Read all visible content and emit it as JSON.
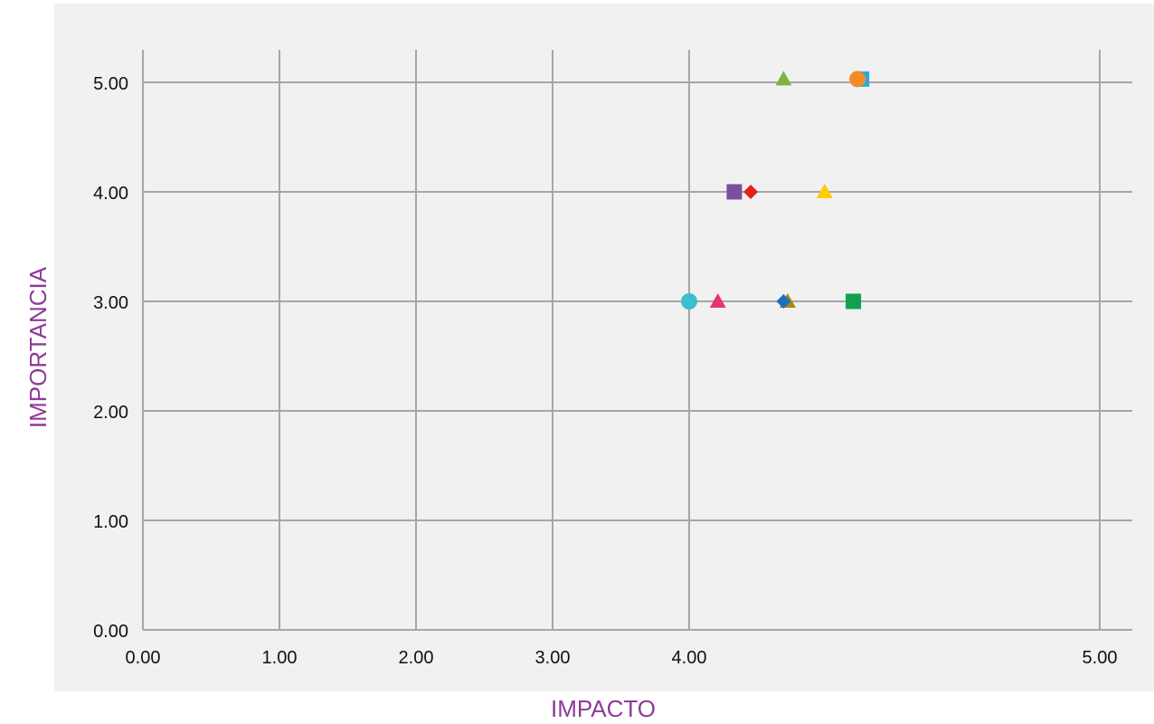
{
  "chart_data": {
    "type": "scatter",
    "xlabel": "IMPACTO",
    "ylabel": "IMPORTANCIA",
    "x_ticks": [
      "0.00",
      "1.00",
      "2.00",
      "3.00",
      "4.00",
      "5.00"
    ],
    "y_ticks": [
      "0.00",
      "1.00",
      "2.00",
      "3.00",
      "4.00",
      "5.00"
    ],
    "x_tick_values": [
      0,
      1,
      2,
      3,
      4,
      5
    ],
    "y_tick_values": [
      0,
      1,
      2,
      3,
      4,
      5
    ],
    "xlim": [
      0,
      5
    ],
    "ylim": [
      0,
      5
    ],
    "grid": true,
    "legend": "none",
    "points": [
      {
        "x": 4.23,
        "y": 5.03,
        "shape": "triangle",
        "color": "#7cb342"
      },
      {
        "x": 4.42,
        "y": 5.03,
        "shape": "square",
        "color": "#29a8e0"
      },
      {
        "x": 4.41,
        "y": 5.03,
        "shape": "circle",
        "color": "#f28c28"
      },
      {
        "x": 4.11,
        "y": 4.0,
        "shape": "square",
        "color": "#7b4fa0"
      },
      {
        "x": 4.15,
        "y": 4.0,
        "shape": "diamond",
        "color": "#e2231a"
      },
      {
        "x": 4.33,
        "y": 4.0,
        "shape": "triangle",
        "color": "#ffcc00"
      },
      {
        "x": 4.0,
        "y": 3.0,
        "shape": "circle",
        "color": "#3cbfcf"
      },
      {
        "x": 4.07,
        "y": 3.0,
        "shape": "triangle",
        "color": "#e6337a"
      },
      {
        "x": 4.24,
        "y": 3.0,
        "shape": "triangle",
        "color": "#a88a12"
      },
      {
        "x": 4.23,
        "y": 3.0,
        "shape": "diamond",
        "color": "#1f6fbf"
      },
      {
        "x": 4.4,
        "y": 3.0,
        "shape": "square",
        "color": "#0fa14b"
      }
    ]
  }
}
